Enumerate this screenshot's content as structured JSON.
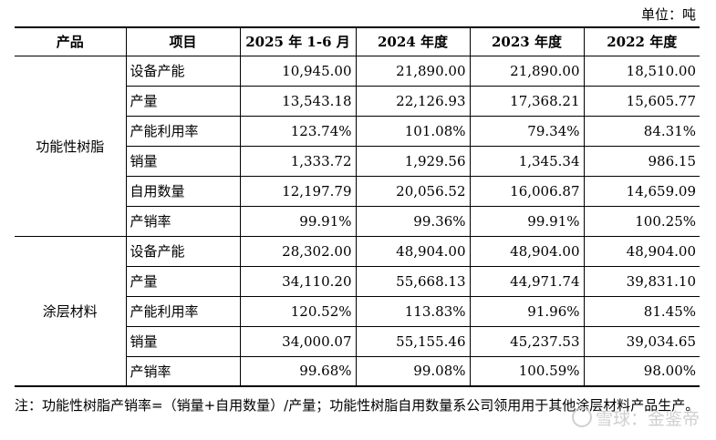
{
  "unit_label": "单位：吨",
  "table": {
    "headers": [
      "产品",
      "项目",
      "2025 年 1-6 月",
      "2024 年度",
      "2023 年度",
      "2022 年度"
    ],
    "groups": [
      {
        "product": "功能性树脂",
        "rows": [
          {
            "item": "设备产能",
            "values": [
              "10,945.00",
              "21,890.00",
              "21,890.00",
              "18,510.00"
            ]
          },
          {
            "item": "产量",
            "values": [
              "13,543.18",
              "22,126.93",
              "17,368.21",
              "15,605.77"
            ]
          },
          {
            "item": "产能利用率",
            "values": [
              "123.74%",
              "101.08%",
              "79.34%",
              "84.31%"
            ]
          },
          {
            "item": "销量",
            "values": [
              "1,333.72",
              "1,929.56",
              "1,345.34",
              "986.15"
            ]
          },
          {
            "item": "自用数量",
            "values": [
              "12,197.79",
              "20,056.52",
              "16,006.87",
              "14,659.09"
            ]
          },
          {
            "item": "产销率",
            "values": [
              "99.91%",
              "99.36%",
              "99.91%",
              "100.25%"
            ]
          }
        ]
      },
      {
        "product": "涂层材料",
        "rows": [
          {
            "item": "设备产能",
            "values": [
              "28,302.00",
              "48,904.00",
              "48,904.00",
              "48,904.00"
            ]
          },
          {
            "item": "产量",
            "values": [
              "34,110.20",
              "55,668.13",
              "44,971.74",
              "39,831.10"
            ]
          },
          {
            "item": "产能利用率",
            "values": [
              "120.52%",
              "113.83%",
              "91.96%",
              "81.45%"
            ]
          },
          {
            "item": "销量",
            "values": [
              "34,000.07",
              "55,155.46",
              "45,237.53",
              "39,034.65"
            ]
          },
          {
            "item": "产销率",
            "values": [
              "99.68%",
              "99.08%",
              "100.59%",
              "98.00%"
            ]
          }
        ]
      }
    ]
  },
  "note": "注：功能性树脂产销率=（销量+自用数量）/产量；功能性树脂自用数量系公司领用用于其他涂层材料产品生产。",
  "watermark": "雪球：金鉴帝"
}
